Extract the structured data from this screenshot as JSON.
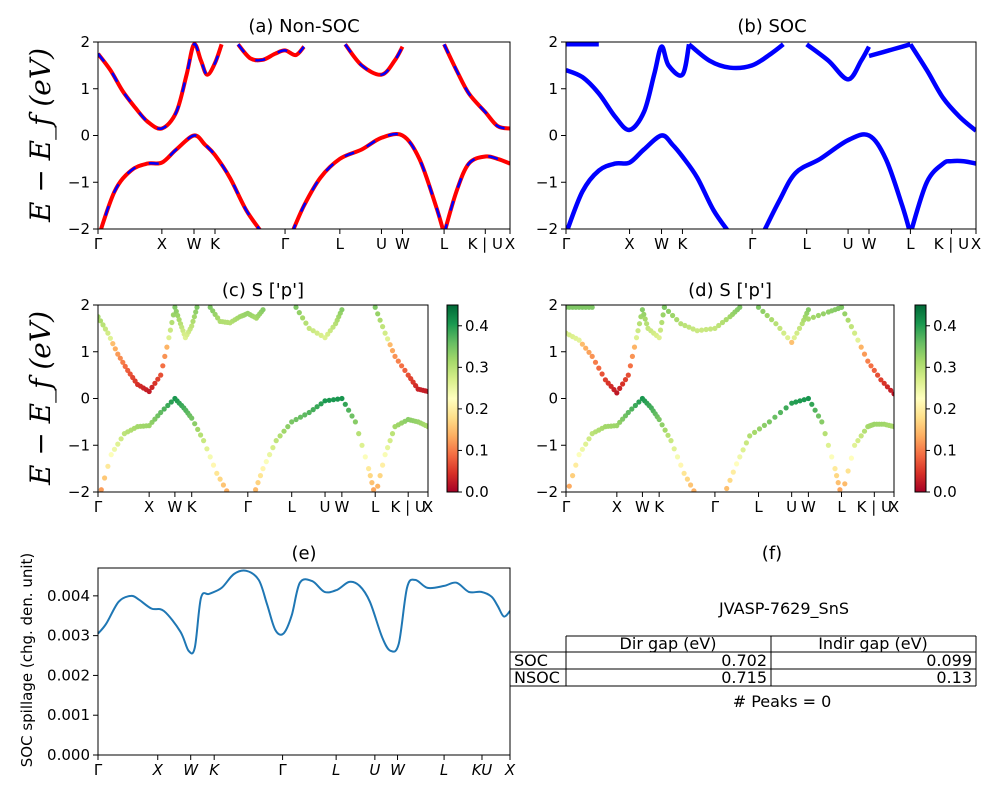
{
  "chart_data": [
    {
      "id": "a",
      "type": "line",
      "title": "(a) Non-SOC",
      "ylabel": "E − E_f (eV)",
      "ylim": [
        -2,
        2
      ],
      "yticks": [
        -2,
        -1,
        0,
        1,
        2
      ],
      "kpath": [
        {
          "label": "Γ",
          "x": 0.0
        },
        {
          "label": "X",
          "x": 0.155
        },
        {
          "label": "W",
          "x": 0.233
        },
        {
          "label": "K",
          "x": 0.284
        },
        {
          "label": "Γ",
          "x": 0.454
        },
        {
          "label": "L",
          "x": 0.587
        },
        {
          "label": "U",
          "x": 0.688
        },
        {
          "label": "W",
          "x": 0.739
        },
        {
          "label": "L",
          "x": 0.84
        },
        {
          "label": "K | U",
          "x": 0.94
        },
        {
          "label": "X",
          "x": 1.0
        }
      ],
      "series": [
        {
          "color": "#ff0000",
          "style": "solid",
          "bands": [
            [
              [
                0,
                1.75
              ],
              [
                0.03,
                1.4
              ],
              [
                0.06,
                0.95
              ],
              [
                0.09,
                0.6
              ],
              [
                0.12,
                0.3
              ],
              [
                0.155,
                0.15
              ],
              [
                0.19,
                0.5
              ],
              [
                0.215,
                1.3
              ],
              [
                0.233,
                1.95
              ],
              [
                0.25,
                1.6
              ],
              [
                0.265,
                1.3
              ],
              [
                0.284,
                1.55
              ],
              [
                0.3,
                1.95
              ]
            ],
            [
              [
                0.34,
                1.95
              ],
              [
                0.37,
                1.65
              ],
              [
                0.4,
                1.62
              ],
              [
                0.43,
                1.75
              ],
              [
                0.454,
                1.82
              ],
              [
                0.48,
                1.72
              ],
              [
                0.5,
                1.9
              ]
            ],
            [
              [
                0,
                -2.2
              ],
              [
                0.04,
                -1.2
              ],
              [
                0.08,
                -0.75
              ],
              [
                0.12,
                -0.6
              ],
              [
                0.155,
                -0.58
              ],
              [
                0.19,
                -0.3
              ],
              [
                0.233,
                0.0
              ],
              [
                0.26,
                -0.2
              ],
              [
                0.284,
                -0.42
              ],
              [
                0.32,
                -0.9
              ],
              [
                0.36,
                -1.6
              ],
              [
                0.4,
                -2.1
              ]
            ],
            [
              [
                0.47,
                -2.1
              ],
              [
                0.5,
                -1.5
              ],
              [
                0.54,
                -0.9
              ],
              [
                0.587,
                -0.5
              ],
              [
                0.64,
                -0.3
              ],
              [
                0.688,
                -0.05
              ],
              [
                0.739,
                0.0
              ],
              [
                0.78,
                -0.5
              ],
              [
                0.82,
                -1.5
              ],
              [
                0.84,
                -2.1
              ]
            ],
            [
              [
                0.84,
                -2.1
              ],
              [
                0.87,
                -1.2
              ],
              [
                0.9,
                -0.6
              ],
              [
                0.94,
                -0.45
              ],
              [
                0.97,
                -0.5
              ],
              [
                1.0,
                -0.6
              ]
            ],
            [
              [
                0.6,
                1.95
              ],
              [
                0.64,
                1.5
              ],
              [
                0.688,
                1.3
              ],
              [
                0.72,
                1.6
              ],
              [
                0.739,
                1.9
              ]
            ],
            [
              [
                0.84,
                1.95
              ],
              [
                0.87,
                1.4
              ],
              [
                0.9,
                0.9
              ],
              [
                0.94,
                0.5
              ],
              [
                0.97,
                0.2
              ],
              [
                1.0,
                0.15
              ]
            ]
          ]
        },
        {
          "color": "#0000ff",
          "style": "dashed",
          "same_as": 0
        }
      ]
    },
    {
      "id": "b",
      "type": "line",
      "title": "(b) SOC",
      "ylim": [
        -2,
        2
      ],
      "yticks": [
        -2,
        -1,
        0,
        1,
        2
      ],
      "series": [
        {
          "color": "#0000ff",
          "style": "solid",
          "bands": [
            [
              [
                0,
                1.4
              ],
              [
                0.04,
                1.25
              ],
              [
                0.08,
                0.9
              ],
              [
                0.12,
                0.4
              ],
              [
                0.155,
                0.12
              ],
              [
                0.19,
                0.5
              ],
              [
                0.215,
                1.3
              ],
              [
                0.233,
                1.9
              ],
              [
                0.25,
                1.5
              ],
              [
                0.284,
                1.3
              ],
              [
                0.3,
                1.95
              ]
            ],
            [
              [
                0,
                1.95
              ],
              [
                0.04,
                1.95
              ],
              [
                0.08,
                1.95
              ]
            ],
            [
              [
                0.3,
                1.95
              ],
              [
                0.35,
                1.6
              ],
              [
                0.4,
                1.45
              ],
              [
                0.454,
                1.5
              ],
              [
                0.5,
                1.75
              ],
              [
                0.53,
                1.95
              ]
            ],
            [
              [
                0.587,
                1.95
              ],
              [
                0.64,
                1.6
              ],
              [
                0.688,
                1.2
              ],
              [
                0.72,
                1.6
              ],
              [
                0.739,
                1.9
              ]
            ],
            [
              [
                0.739,
                1.7
              ],
              [
                0.8,
                1.85
              ],
              [
                0.84,
                1.95
              ]
            ],
            [
              [
                0.84,
                1.95
              ],
              [
                0.88,
                1.4
              ],
              [
                0.92,
                0.8
              ],
              [
                0.96,
                0.4
              ],
              [
                1.0,
                0.1
              ]
            ],
            [
              [
                0,
                -2.1
              ],
              [
                0.04,
                -1.2
              ],
              [
                0.08,
                -0.75
              ],
              [
                0.12,
                -0.6
              ],
              [
                0.155,
                -0.58
              ],
              [
                0.19,
                -0.3
              ],
              [
                0.233,
                0.0
              ],
              [
                0.26,
                -0.2
              ],
              [
                0.284,
                -0.45
              ],
              [
                0.32,
                -0.9
              ],
              [
                0.36,
                -1.6
              ],
              [
                0.4,
                -2.1
              ]
            ],
            [
              [
                0.48,
                -2.1
              ],
              [
                0.52,
                -1.4
              ],
              [
                0.56,
                -0.8
              ],
              [
                0.62,
                -0.5
              ],
              [
                0.688,
                -0.1
              ],
              [
                0.739,
                0.0
              ],
              [
                0.78,
                -0.5
              ],
              [
                0.82,
                -1.5
              ],
              [
                0.84,
                -2.1
              ]
            ],
            [
              [
                0.84,
                -2.1
              ],
              [
                0.88,
                -1.0
              ],
              [
                0.92,
                -0.6
              ],
              [
                0.94,
                -0.55
              ],
              [
                0.97,
                -0.55
              ],
              [
                1.0,
                -0.6
              ]
            ]
          ]
        }
      ]
    },
    {
      "id": "c",
      "type": "scatter",
      "title": "(c)  S ['p']",
      "ylabel": "E − E_f (eV)",
      "ylim": [
        -2,
        2
      ],
      "yticks": [
        -2,
        -1,
        0,
        1,
        2
      ],
      "colorbar": {
        "min": 0.0,
        "max": 0.45,
        "ticks": [
          0.0,
          0.1,
          0.2,
          0.3,
          0.4
        ],
        "cmap": "RdYlGn"
      },
      "kpath": [
        {
          "label": "Γ",
          "x": 0.0
        },
        {
          "label": "X",
          "x": 0.155
        },
        {
          "label": "W",
          "x": 0.233
        },
        {
          "label": "K",
          "x": 0.284
        },
        {
          "label": "Γ",
          "x": 0.454
        },
        {
          "label": "L",
          "x": 0.587
        },
        {
          "label": "U",
          "x": 0.688
        },
        {
          "label": "W",
          "x": 0.739
        },
        {
          "label": "L",
          "x": 0.84
        },
        {
          "label": "K | U",
          "x": 0.94
        },
        {
          "label": "X",
          "x": 1.0
        }
      ]
    },
    {
      "id": "d",
      "type": "scatter",
      "title": "(d) S ['p']",
      "ylim": [
        -2,
        2
      ],
      "yticks": [
        -2,
        -1,
        0,
        1,
        2
      ],
      "colorbar": {
        "min": 0.0,
        "max": 0.45,
        "ticks": [
          0.0,
          0.1,
          0.2,
          0.3,
          0.4
        ],
        "cmap": "RdYlGn"
      }
    },
    {
      "id": "e",
      "type": "line",
      "title": "(e)",
      "ylabel": "SOC spillage (chg. den. unit)",
      "ylim": [
        0,
        0.0047
      ],
      "yticks": [
        0.0,
        0.001,
        0.002,
        0.003,
        0.004
      ],
      "ytick_labels": [
        "0.000",
        "0.001",
        "0.002",
        "0.003",
        "0.004"
      ],
      "kpath": [
        {
          "label": "Γ",
          "x": 0.0
        },
        {
          "label": "X",
          "x": 0.145
        },
        {
          "label": "W",
          "x": 0.225
        },
        {
          "label": "K",
          "x": 0.282
        },
        {
          "label": "Γ",
          "x": 0.448
        },
        {
          "label": "L",
          "x": 0.578
        },
        {
          "label": "U",
          "x": 0.672
        },
        {
          "label": "W",
          "x": 0.727
        },
        {
          "label": "L",
          "x": 0.84
        },
        {
          "label": "KU",
          "x": 0.932
        },
        {
          "label": "X",
          "x": 1.0
        }
      ],
      "x": [
        0,
        0.02,
        0.05,
        0.08,
        0.1,
        0.13,
        0.16,
        0.2,
        0.22,
        0.235,
        0.25,
        0.27,
        0.3,
        0.33,
        0.36,
        0.39,
        0.41,
        0.43,
        0.45,
        0.47,
        0.49,
        0.52,
        0.55,
        0.58,
        0.61,
        0.635,
        0.66,
        0.69,
        0.71,
        0.73,
        0.75,
        0.77,
        0.8,
        0.84,
        0.87,
        0.9,
        0.93,
        0.955,
        0.97,
        0.985,
        1.0
      ],
      "values": [
        0.00305,
        0.0033,
        0.00385,
        0.004,
        0.0039,
        0.00368,
        0.00362,
        0.0031,
        0.00262,
        0.0027,
        0.00395,
        0.00405,
        0.0042,
        0.00455,
        0.00463,
        0.0044,
        0.0038,
        0.00315,
        0.00305,
        0.0035,
        0.00433,
        0.00437,
        0.0041,
        0.00415,
        0.00435,
        0.00425,
        0.00385,
        0.00295,
        0.00262,
        0.0028,
        0.0042,
        0.0044,
        0.0042,
        0.00425,
        0.00433,
        0.0041,
        0.0041,
        0.00398,
        0.00375,
        0.00348,
        0.00362
      ],
      "color": "#1f77b4"
    }
  ],
  "info": {
    "title": "(f)",
    "material": "JVASP-7629_SnS",
    "table": {
      "columns": [
        "",
        "Dir gap (eV)",
        "Indir gap (eV)"
      ],
      "rows": [
        [
          "SOC",
          "0.702",
          "0.099"
        ],
        [
          "NSOC",
          "0.715",
          "0.13"
        ]
      ]
    },
    "peaks": "# Peaks = 0"
  }
}
